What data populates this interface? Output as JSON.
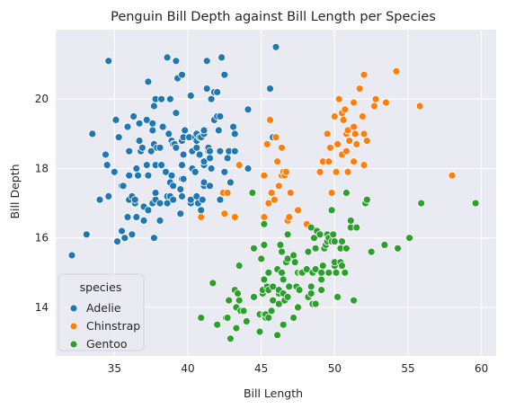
{
  "chart_data": {
    "type": "scatter",
    "title": "Penguin Bill Depth against Bill Length per Species",
    "xlabel": "Bill Length",
    "ylabel": "Bill Depth",
    "xlim": [
      31,
      61
    ],
    "ylim": [
      12.6,
      22.0
    ],
    "xticks": [
      35,
      40,
      45,
      50,
      55,
      60
    ],
    "yticks": [
      14,
      16,
      18,
      20
    ],
    "grid": true,
    "background": "#eaeaf2",
    "legend": {
      "title": "species",
      "placement": "lower-left"
    },
    "series": [
      {
        "name": "Adelie",
        "color": "#1f77b4",
        "points": [
          [
            32.1,
            15.5
          ],
          [
            33.1,
            16.1
          ],
          [
            33.5,
            19.0
          ],
          [
            34.0,
            17.1
          ],
          [
            34.4,
            18.4
          ],
          [
            34.5,
            18.1
          ],
          [
            34.6,
            21.1
          ],
          [
            34.6,
            17.2
          ],
          [
            35.0,
            17.9
          ],
          [
            35.1,
            19.4
          ],
          [
            35.2,
            15.9
          ],
          [
            35.3,
            18.9
          ],
          [
            35.5,
            16.2
          ],
          [
            35.5,
            17.5
          ],
          [
            35.6,
            17.5
          ],
          [
            35.7,
            16.0
          ],
          [
            35.9,
            16.6
          ],
          [
            35.9,
            19.2
          ],
          [
            36.0,
            17.1
          ],
          [
            36.0,
            17.8
          ],
          [
            36.0,
            18.5
          ],
          [
            36.2,
            16.1
          ],
          [
            36.2,
            17.2
          ],
          [
            36.3,
            19.5
          ],
          [
            36.4,
            17.0
          ],
          [
            36.4,
            17.1
          ],
          [
            36.5,
            16.6
          ],
          [
            36.5,
            18.0
          ],
          [
            36.6,
            17.8
          ],
          [
            36.7,
            18.8
          ],
          [
            36.7,
            19.3
          ],
          [
            36.8,
            18.5
          ],
          [
            36.9,
            18.6
          ],
          [
            37.0,
            16.5
          ],
          [
            37.0,
            16.9
          ],
          [
            37.2,
            18.1
          ],
          [
            37.2,
            19.4
          ],
          [
            37.3,
            16.8
          ],
          [
            37.3,
            17.8
          ],
          [
            37.3,
            20.5
          ],
          [
            37.5,
            18.5
          ],
          [
            37.6,
            17.0
          ],
          [
            37.6,
            19.1
          ],
          [
            37.6,
            19.3
          ],
          [
            37.7,
            16.0
          ],
          [
            37.7,
            18.7
          ],
          [
            37.7,
            19.8
          ],
          [
            37.8,
            17.1
          ],
          [
            37.8,
            17.3
          ],
          [
            37.8,
            18.1
          ],
          [
            37.8,
            20.0
          ],
          [
            37.9,
            18.6
          ],
          [
            38.1,
            16.5
          ],
          [
            38.1,
            17.0
          ],
          [
            38.1,
            18.6
          ],
          [
            38.2,
            18.1
          ],
          [
            38.2,
            20.0
          ],
          [
            38.3,
            19.2
          ],
          [
            38.5,
            17.9
          ],
          [
            38.6,
            17.0
          ],
          [
            38.6,
            17.2
          ],
          [
            38.6,
            21.2
          ],
          [
            38.7,
            19.0
          ],
          [
            38.8,
            17.2
          ],
          [
            38.8,
            17.6
          ],
          [
            38.8,
            20.0
          ],
          [
            38.9,
            17.8
          ],
          [
            38.9,
            18.8
          ],
          [
            39.0,
            17.1
          ],
          [
            39.0,
            17.5
          ],
          [
            39.0,
            18.7
          ],
          [
            39.1,
            18.7
          ],
          [
            39.2,
            18.6
          ],
          [
            39.2,
            19.6
          ],
          [
            39.2,
            21.1
          ],
          [
            39.3,
            20.6
          ],
          [
            39.5,
            16.7
          ],
          [
            39.5,
            17.4
          ],
          [
            39.6,
            17.2
          ],
          [
            39.6,
            17.7
          ],
          [
            39.6,
            18.1
          ],
          [
            39.6,
            18.8
          ],
          [
            39.6,
            20.7
          ],
          [
            39.7,
            17.7
          ],
          [
            39.7,
            18.4
          ],
          [
            39.7,
            18.9
          ],
          [
            39.8,
            19.1
          ],
          [
            40.1,
            18.9
          ],
          [
            40.2,
            17.0
          ],
          [
            40.2,
            17.1
          ],
          [
            40.2,
            20.1
          ],
          [
            40.3,
            18.0
          ],
          [
            40.3,
            18.5
          ],
          [
            40.5,
            17.9
          ],
          [
            40.5,
            18.9
          ],
          [
            40.6,
            17.2
          ],
          [
            40.6,
            18.6
          ],
          [
            40.6,
            18.8
          ],
          [
            40.6,
            19.0
          ],
          [
            40.7,
            17.0
          ],
          [
            40.8,
            18.4
          ],
          [
            40.8,
            18.9
          ],
          [
            40.9,
            16.6
          ],
          [
            40.9,
            16.8
          ],
          [
            40.9,
            18.9
          ],
          [
            41.0,
            17.1
          ],
          [
            41.1,
            17.5
          ],
          [
            41.1,
            17.6
          ],
          [
            41.1,
            18.1
          ],
          [
            41.1,
            18.2
          ],
          [
            41.1,
            19.0
          ],
          [
            41.1,
            19.1
          ],
          [
            41.3,
            20.3
          ],
          [
            41.3,
            21.1
          ],
          [
            41.4,
            18.5
          ],
          [
            41.4,
            18.6
          ],
          [
            41.5,
            17.5
          ],
          [
            41.5,
            18.3
          ],
          [
            41.5,
            18.5
          ],
          [
            41.6,
            18.0
          ],
          [
            41.6,
            20.0
          ],
          [
            41.8,
            19.4
          ],
          [
            41.8,
            20.2
          ],
          [
            42.0,
            19.5
          ],
          [
            42.0,
            20.2
          ],
          [
            42.1,
            19.1
          ],
          [
            42.2,
            17.1
          ],
          [
            42.2,
            18.5
          ],
          [
            42.2,
            19.5
          ],
          [
            42.3,
            21.2
          ],
          [
            42.5,
            17.9
          ],
          [
            42.5,
            20.7
          ],
          [
            42.7,
            18.3
          ],
          [
            42.8,
            18.5
          ],
          [
            42.9,
            17.6
          ],
          [
            43.1,
            19.2
          ],
          [
            43.2,
            18.5
          ],
          [
            43.2,
            19.0
          ],
          [
            44.1,
            18.0
          ],
          [
            44.1,
            19.7
          ],
          [
            45.6,
            20.3
          ],
          [
            45.8,
            18.9
          ],
          [
            46.0,
            21.5
          ]
        ]
      },
      {
        "name": "Chinstrap",
        "color": "#ff7f0e",
        "points": [
          [
            40.9,
            16.6
          ],
          [
            42.4,
            17.3
          ],
          [
            42.5,
            16.7
          ],
          [
            42.7,
            17.3
          ],
          [
            43.2,
            16.6
          ],
          [
            43.5,
            18.1
          ],
          [
            45.2,
            17.8
          ],
          [
            45.2,
            16.6
          ],
          [
            45.4,
            18.7
          ],
          [
            45.5,
            17.0
          ],
          [
            45.6,
            19.4
          ],
          [
            45.7,
            17.3
          ],
          [
            45.9,
            17.1
          ],
          [
            46.0,
            18.9
          ],
          [
            46.1,
            18.2
          ],
          [
            46.2,
            17.5
          ],
          [
            46.4,
            18.6
          ],
          [
            46.4,
            17.8
          ],
          [
            46.5,
            17.9
          ],
          [
            46.6,
            17.8
          ],
          [
            46.7,
            17.9
          ],
          [
            46.8,
            16.5
          ],
          [
            46.9,
            16.6
          ],
          [
            47.0,
            17.3
          ],
          [
            47.5,
            16.8
          ],
          [
            48.1,
            16.4
          ],
          [
            49.0,
            17.9
          ],
          [
            49.2,
            18.2
          ],
          [
            49.5,
            19.0
          ],
          [
            49.6,
            18.2
          ],
          [
            49.7,
            18.6
          ],
          [
            49.8,
            17.3
          ],
          [
            50.0,
            19.5
          ],
          [
            50.1,
            17.9
          ],
          [
            50.2,
            18.7
          ],
          [
            50.3,
            20.0
          ],
          [
            50.5,
            18.4
          ],
          [
            50.5,
            19.6
          ],
          [
            50.6,
            19.4
          ],
          [
            50.7,
            19.7
          ],
          [
            50.8,
            18.5
          ],
          [
            50.8,
            19.0
          ],
          [
            50.9,
            17.9
          ],
          [
            50.9,
            19.1
          ],
          [
            51.0,
            18.8
          ],
          [
            51.3,
            18.2
          ],
          [
            51.3,
            19.2
          ],
          [
            51.3,
            19.9
          ],
          [
            51.4,
            19.0
          ],
          [
            51.5,
            18.7
          ],
          [
            51.7,
            20.3
          ],
          [
            51.9,
            19.5
          ],
          [
            52.0,
            18.1
          ],
          [
            52.0,
            19.0
          ],
          [
            52.0,
            20.7
          ],
          [
            52.2,
            18.8
          ],
          [
            52.7,
            19.8
          ],
          [
            52.8,
            20.0
          ],
          [
            53.5,
            19.9
          ],
          [
            54.2,
            20.8
          ],
          [
            55.8,
            19.8
          ],
          [
            58.0,
            17.8
          ]
        ]
      },
      {
        "name": "Gentoo",
        "color": "#2ca02c",
        "points": [
          [
            40.9,
            13.7
          ],
          [
            41.7,
            14.7
          ],
          [
            42.0,
            13.5
          ],
          [
            42.6,
            13.7
          ],
          [
            42.7,
            13.7
          ],
          [
            42.8,
            14.2
          ],
          [
            42.9,
            13.1
          ],
          [
            43.2,
            14.5
          ],
          [
            43.3,
            13.4
          ],
          [
            43.3,
            14.0
          ],
          [
            43.4,
            14.4
          ],
          [
            43.5,
            14.2
          ],
          [
            43.5,
            15.2
          ],
          [
            43.6,
            13.9
          ],
          [
            43.8,
            13.9
          ],
          [
            44.0,
            13.6
          ],
          [
            44.4,
            17.3
          ],
          [
            44.5,
            14.3
          ],
          [
            44.5,
            15.7
          ],
          [
            44.9,
            13.3
          ],
          [
            44.9,
            13.8
          ],
          [
            45.0,
            15.4
          ],
          [
            45.1,
            14.4
          ],
          [
            45.1,
            14.5
          ],
          [
            45.2,
            13.8
          ],
          [
            45.2,
            14.8
          ],
          [
            45.2,
            15.8
          ],
          [
            45.2,
            16.4
          ],
          [
            45.3,
            13.7
          ],
          [
            45.3,
            13.8
          ],
          [
            45.4,
            14.6
          ],
          [
            45.5,
            13.7
          ],
          [
            45.5,
            14.5
          ],
          [
            45.5,
            15.0
          ],
          [
            45.7,
            13.9
          ],
          [
            45.8,
            14.2
          ],
          [
            45.8,
            14.6
          ],
          [
            46.1,
            13.2
          ],
          [
            46.1,
            15.1
          ],
          [
            46.2,
            14.1
          ],
          [
            46.2,
            14.4
          ],
          [
            46.2,
            14.5
          ],
          [
            46.3,
            15.8
          ],
          [
            46.4,
            15.0
          ],
          [
            46.4,
            15.6
          ],
          [
            46.5,
            13.5
          ],
          [
            46.5,
            14.4
          ],
          [
            46.5,
            14.8
          ],
          [
            46.6,
            14.2
          ],
          [
            46.7,
            15.3
          ],
          [
            46.8,
            14.3
          ],
          [
            46.8,
            15.4
          ],
          [
            46.8,
            16.1
          ],
          [
            46.9,
            14.6
          ],
          [
            47.2,
            13.7
          ],
          [
            47.2,
            15.5
          ],
          [
            47.3,
            15.3
          ],
          [
            47.4,
            14.6
          ],
          [
            47.5,
            14.0
          ],
          [
            47.5,
            15.0
          ],
          [
            47.6,
            14.5
          ],
          [
            47.7,
            15.0
          ],
          [
            47.8,
            15.0
          ],
          [
            48.1,
            15.1
          ],
          [
            48.2,
            14.3
          ],
          [
            48.2,
            15.6
          ],
          [
            48.4,
            14.4
          ],
          [
            48.4,
            14.6
          ],
          [
            48.4,
            16.3
          ],
          [
            48.5,
            14.1
          ],
          [
            48.5,
            15.0
          ],
          [
            48.6,
            16.0
          ],
          [
            48.7,
            14.1
          ],
          [
            48.7,
            15.1
          ],
          [
            48.7,
            15.7
          ],
          [
            48.8,
            16.2
          ],
          [
            49.0,
            16.1
          ],
          [
            49.1,
            14.5
          ],
          [
            49.1,
            14.8
          ],
          [
            49.1,
            15.0
          ],
          [
            49.2,
            15.2
          ],
          [
            49.3,
            15.7
          ],
          [
            49.4,
            15.8
          ],
          [
            49.5,
            15.9
          ],
          [
            49.5,
            16.1
          ],
          [
            49.6,
            15.0
          ],
          [
            49.6,
            16.0
          ],
          [
            49.8,
            15.9
          ],
          [
            49.8,
            16.8
          ],
          [
            49.9,
            16.1
          ],
          [
            50.0,
            15.2
          ],
          [
            50.0,
            15.3
          ],
          [
            50.0,
            15.9
          ],
          [
            50.1,
            15.0
          ],
          [
            50.2,
            14.3
          ],
          [
            50.4,
            15.3
          ],
          [
            50.4,
            15.7
          ],
          [
            50.5,
            15.2
          ],
          [
            50.5,
            15.9
          ],
          [
            50.7,
            15.0
          ],
          [
            50.8,
            15.7
          ],
          [
            50.8,
            17.3
          ],
          [
            51.1,
            16.3
          ],
          [
            51.1,
            16.5
          ],
          [
            51.3,
            14.2
          ],
          [
            51.5,
            16.3
          ],
          [
            52.1,
            17.0
          ],
          [
            52.2,
            17.1
          ],
          [
            52.5,
            15.6
          ],
          [
            53.4,
            15.8
          ],
          [
            54.3,
            15.7
          ],
          [
            55.1,
            16.0
          ],
          [
            55.9,
            17.0
          ],
          [
            59.6,
            17.0
          ]
        ]
      }
    ]
  }
}
